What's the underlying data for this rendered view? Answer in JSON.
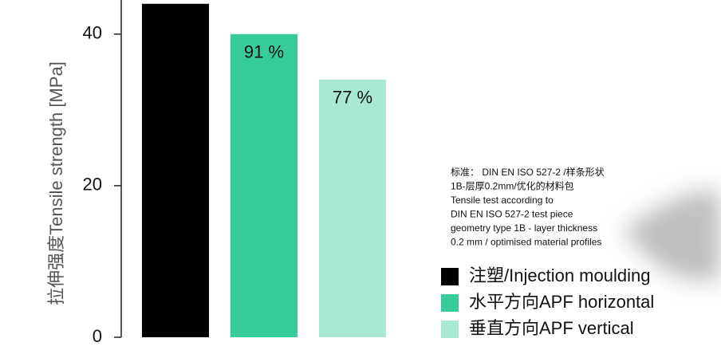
{
  "chart_data": {
    "type": "bar",
    "y_label": "拉伸强度Tensile strength [MPa]",
    "series": [
      {
        "name": "注塑/Injection moulding",
        "color": "#000000",
        "values": [
          44
        ]
      },
      {
        "name": "水平方向APF horizontal",
        "color": "#35cc99",
        "values": [
          40
        ]
      },
      {
        "name": "垂直方向APF vertical",
        "color": "#a8e8d4",
        "values": [
          34
        ]
      }
    ],
    "annotations": [
      null,
      "91 %",
      "77 %"
    ],
    "note": [
      "标准： DIN EN ISO 527-2 /样条形状",
      "1B-层厚0.2mm/优化的材料包",
      "Tensile test according to",
      "DIN EN ISO 527-2 test piece",
      "geometry type 1B - layer thickness",
      "0.2 mm / optimised material profiles"
    ],
    "ylim": [
      0,
      44.5
    ],
    "yticks": [
      0,
      20,
      40
    ],
    "grid": false
  }
}
